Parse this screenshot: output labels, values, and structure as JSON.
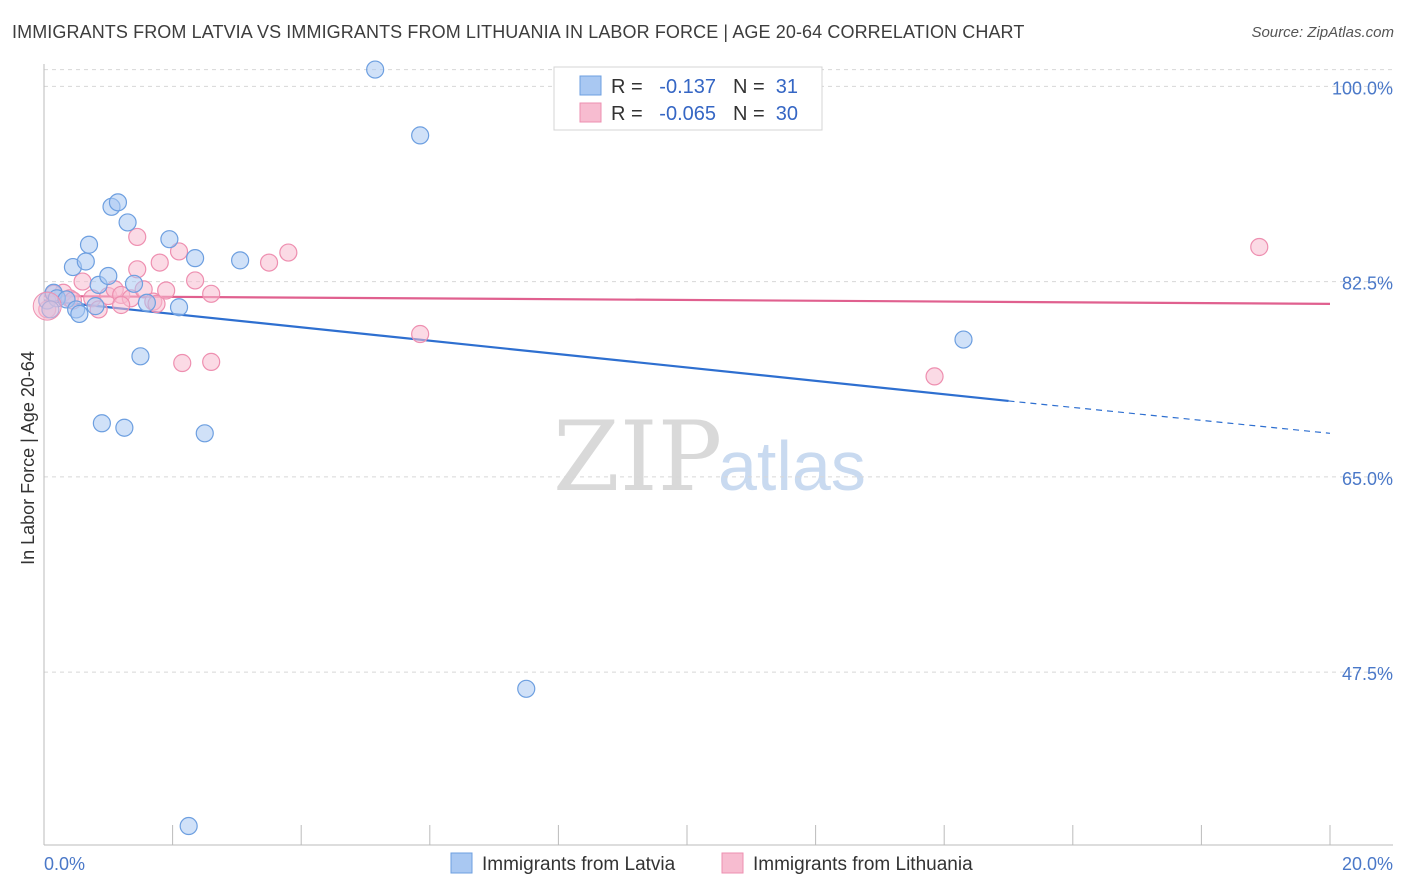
{
  "title": "IMMIGRANTS FROM LATVIA VS IMMIGRANTS FROM LITHUANIA IN LABOR FORCE | AGE 20-64 CORRELATION CHART",
  "source": "Source: ZipAtlas.com",
  "watermark": {
    "zip": "ZIP",
    "atlas": "atlas"
  },
  "colors": {
    "latvia_fill": "#a9c8f2",
    "latvia_stroke": "#6d9fe0",
    "latvia_line": "#2e6fd0",
    "lithuania_fill": "#f7bcd0",
    "lithuania_stroke": "#ee8fb0",
    "lithuania_line": "#e0608f",
    "tick_text": "#4a78c8",
    "grid": "#d8d8d8"
  },
  "legend": {
    "latvia": {
      "r_label": "R =",
      "r_value": "-0.137",
      "n_label": "N =",
      "n_value": "31"
    },
    "lithuania": {
      "r_label": "R =",
      "r_value": "-0.065",
      "n_label": "N =",
      "n_value": "30"
    }
  },
  "chart_data": {
    "type": "scatter",
    "title": "IMMIGRANTS FROM LATVIA VS IMMIGRANTS FROM LITHUANIA IN LABOR FORCE | AGE 20-64 CORRELATION CHART",
    "xlabel": "",
    "ylabel": "In Labor Force | Age 20-64",
    "xlim": [
      0,
      20
    ],
    "ylim": [
      32,
      102
    ],
    "x_tick_labels": [
      "0.0%",
      "20.0%"
    ],
    "y_ticks": [
      100,
      82.5,
      65,
      47.5
    ],
    "y_tick_labels": [
      "100.0%",
      "82.5%",
      "65.0%",
      "47.5%"
    ],
    "grid": true,
    "legend_position": "top-center",
    "series": [
      {
        "name": "Immigrants from Latvia",
        "points": [
          [
            0.05,
            80.8
          ],
          [
            0.15,
            81.5
          ],
          [
            0.2,
            81.0
          ],
          [
            0.35,
            80.9
          ],
          [
            0.45,
            83.8
          ],
          [
            0.5,
            80.0
          ],
          [
            0.55,
            79.6
          ],
          [
            0.65,
            84.3
          ],
          [
            0.7,
            85.8
          ],
          [
            0.8,
            80.3
          ],
          [
            0.85,
            82.2
          ],
          [
            0.9,
            69.8
          ],
          [
            1.0,
            83.0
          ],
          [
            1.05,
            89.2
          ],
          [
            1.15,
            89.6
          ],
          [
            1.25,
            69.4
          ],
          [
            1.3,
            87.8
          ],
          [
            1.4,
            82.3
          ],
          [
            1.5,
            75.8
          ],
          [
            1.6,
            80.6
          ],
          [
            1.95,
            86.3
          ],
          [
            2.1,
            80.2
          ],
          [
            2.35,
            84.6
          ],
          [
            2.5,
            68.9
          ],
          [
            3.05,
            84.4
          ],
          [
            5.15,
            101.5
          ],
          [
            5.85,
            95.6
          ],
          [
            7.5,
            46.0
          ],
          [
            14.3,
            77.3
          ],
          [
            2.25,
            33.7
          ],
          [
            0.1,
            80.0
          ]
        ],
        "trend": {
          "x_start": 0,
          "y_start": 80.8,
          "x_solid_end": 15.0,
          "y_solid_end": 71.8,
          "x_end": 20.0,
          "y_end": 68.9
        }
      },
      {
        "name": "Immigrants from Lithuania",
        "points": [
          [
            0.05,
            80.0
          ],
          [
            0.3,
            81.5
          ],
          [
            0.4,
            81.0
          ],
          [
            0.6,
            82.5
          ],
          [
            0.75,
            81.0
          ],
          [
            0.85,
            80.0
          ],
          [
            1.0,
            81.2
          ],
          [
            1.1,
            81.8
          ],
          [
            1.2,
            81.3
          ],
          [
            1.35,
            81.0
          ],
          [
            1.45,
            83.6
          ],
          [
            1.45,
            86.5
          ],
          [
            1.55,
            81.8
          ],
          [
            1.7,
            80.7
          ],
          [
            1.75,
            80.5
          ],
          [
            1.8,
            84.2
          ],
          [
            1.9,
            81.7
          ],
          [
            2.1,
            85.2
          ],
          [
            2.15,
            75.2
          ],
          [
            2.35,
            82.6
          ],
          [
            2.6,
            75.3
          ],
          [
            2.6,
            81.4
          ],
          [
            3.5,
            84.2
          ],
          [
            3.8,
            85.1
          ],
          [
            5.85,
            77.8
          ],
          [
            13.85,
            74.0
          ],
          [
            18.9,
            85.6
          ],
          [
            0.15,
            81.4
          ],
          [
            0.45,
            80.8
          ],
          [
            1.2,
            80.4
          ]
        ],
        "trend": {
          "x_start": 0,
          "y_start": 81.2,
          "x_end": 20.0,
          "y_end": 80.5
        }
      }
    ]
  }
}
